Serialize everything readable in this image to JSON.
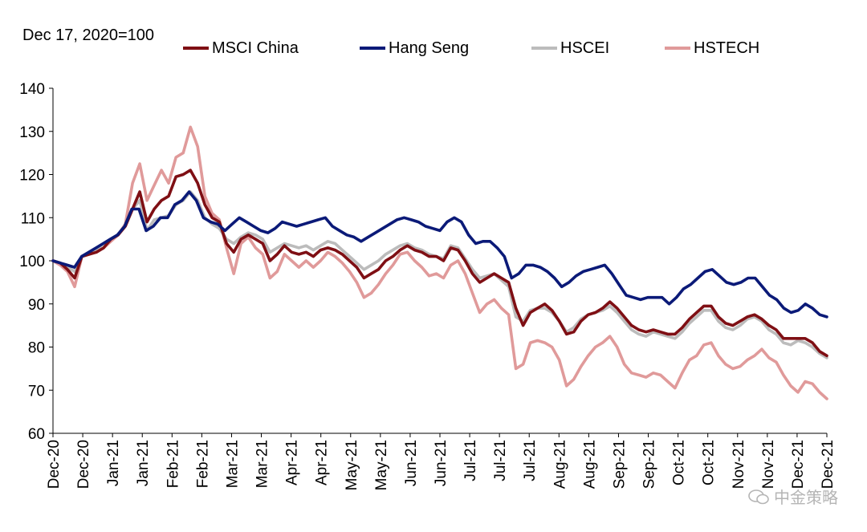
{
  "chart_data": {
    "type": "line",
    "title": "",
    "unit_note": "Dec 17, 2020=100",
    "xlabel": "",
    "ylabel": "",
    "ylim": [
      60,
      140
    ],
    "yticks": [
      60,
      70,
      80,
      90,
      100,
      110,
      120,
      130,
      140
    ],
    "xtick_labels": [
      "Dec-20",
      "Dec-20",
      "Jan-21",
      "Jan-21",
      "Feb-21",
      "Feb-21",
      "Mar-21",
      "Mar-21",
      "Apr-21",
      "Apr-21",
      "May-21",
      "May-21",
      "Jun-21",
      "Jun-21",
      "Jul-21",
      "Jul-21",
      "Jul-21",
      "Aug-21",
      "Aug-21",
      "Sep-21",
      "Sep-21",
      "Oct-21",
      "Oct-21",
      "Nov-21",
      "Nov-21",
      "Dec-21",
      "Dec-21"
    ],
    "grid": false,
    "legend_position": "top",
    "series": [
      {
        "name": "MSCI China",
        "color": "#7f0f14",
        "values": [
          100,
          99.5,
          98,
          96,
          101,
          101.5,
          102,
          103,
          105,
          106,
          108,
          112,
          116,
          109,
          112,
          114,
          115,
          119.5,
          120,
          121,
          118,
          113,
          110,
          109,
          104,
          102,
          105,
          106,
          105,
          104,
          100,
          101.5,
          103.5,
          102,
          101.5,
          102,
          101,
          102.5,
          103,
          102.5,
          101.5,
          100,
          98.5,
          96,
          97,
          98,
          100,
          101,
          102.5,
          103.5,
          102.5,
          102,
          101,
          101,
          100,
          103,
          102.5,
          100,
          97,
          95,
          96,
          97,
          96,
          95,
          89,
          85,
          88,
          89,
          90,
          88.5,
          86,
          83,
          83.5,
          86,
          87.5,
          88,
          89,
          90.5,
          89,
          87,
          85,
          84,
          83.5,
          84,
          83.5,
          83,
          83,
          84.5,
          86.5,
          88,
          89.5,
          89.5,
          87,
          85.5,
          85,
          86,
          87,
          87.5,
          86.5,
          85,
          84,
          82,
          82,
          82,
          82,
          81,
          79,
          78
        ]
      },
      {
        "name": "Hang Seng",
        "color": "#0b1a78",
        "values": [
          100,
          99.5,
          99,
          98.5,
          101,
          102,
          103,
          104,
          105,
          106,
          108,
          112,
          112,
          107,
          108,
          110,
          110,
          113,
          114,
          116,
          114,
          110,
          109,
          108.5,
          107,
          108.5,
          110,
          109,
          108,
          107,
          106.5,
          107.5,
          109,
          108.5,
          108,
          108.5,
          109,
          109.5,
          110,
          108,
          107,
          106,
          105.5,
          104.5,
          105.5,
          106.5,
          107.5,
          108.5,
          109.5,
          110,
          109.5,
          109,
          108,
          107.5,
          107,
          109,
          110,
          109,
          106,
          104,
          104.5,
          104.5,
          103,
          101,
          96,
          97,
          99,
          99,
          98.5,
          97.5,
          96,
          94,
          95,
          96.5,
          97.5,
          98,
          98.5,
          99,
          97,
          94.5,
          92,
          91.5,
          91,
          91.5,
          91.5,
          91.5,
          90,
          91.5,
          93.5,
          94.5,
          96,
          97.5,
          98,
          96.5,
          95,
          94.5,
          95,
          96,
          96,
          94,
          92,
          91,
          89,
          88,
          88.5,
          90,
          89,
          87.5,
          87
        ]
      },
      {
        "name": "HSCEI",
        "color": "#bcbcbc",
        "values": [
          100,
          99.5,
          98.5,
          97.5,
          101,
          101.5,
          102.5,
          104,
          105,
          106,
          108,
          112,
          114,
          107,
          109.5,
          110,
          110.5,
          113,
          114,
          116,
          114,
          110,
          108.5,
          107.5,
          105,
          104,
          105.5,
          106.5,
          106,
          105,
          102,
          103,
          104,
          103.5,
          103,
          103.5,
          102.5,
          103.5,
          104.5,
          104,
          102.5,
          101,
          99.5,
          98,
          99,
          100,
          101.5,
          102.5,
          103.5,
          104,
          103,
          102.5,
          101.5,
          101,
          100.5,
          103.5,
          103,
          100.5,
          98,
          96,
          96.5,
          97,
          95.5,
          94,
          87,
          86,
          88.5,
          89,
          89,
          88,
          86,
          83.5,
          84.5,
          86.5,
          87.5,
          88,
          88.5,
          89.5,
          88,
          86,
          84,
          83,
          82.5,
          83.5,
          83,
          82.5,
          82,
          83.5,
          85.5,
          87,
          88.5,
          88.5,
          86,
          84.5,
          84,
          85,
          86.5,
          87,
          86,
          84,
          83,
          81,
          80.5,
          81.5,
          81,
          80,
          78.5,
          77.5
        ]
      },
      {
        "name": "HSTECH",
        "color": "#e09a9a",
        "values": [
          100,
          99,
          97.5,
          94,
          101,
          101.5,
          102,
          103,
          104.5,
          106,
          108.5,
          118,
          122.5,
          114,
          117.5,
          121,
          118,
          124,
          125,
          131,
          126.5,
          115,
          111,
          109.5,
          103,
          97,
          104,
          105.5,
          103,
          101.5,
          96,
          97.5,
          101.5,
          100,
          98.5,
          100,
          98.5,
          100,
          102,
          101,
          99.5,
          97.5,
          95,
          91.5,
          92.5,
          94.5,
          97,
          99,
          101.5,
          102,
          100,
          98.5,
          96.5,
          97,
          96,
          99,
          100,
          97,
          92.5,
          88,
          90,
          91,
          89,
          87.5,
          75,
          76,
          81,
          81.5,
          81,
          80,
          77,
          71,
          72.5,
          75.5,
          78,
          80,
          81,
          82.5,
          80,
          76,
          74,
          73.5,
          73,
          74,
          73.5,
          72,
          70.5,
          74,
          77,
          78,
          80.5,
          81,
          78,
          76,
          75,
          75.5,
          77,
          78,
          79.5,
          77.5,
          76.5,
          73.5,
          71,
          69.5,
          72,
          71.5,
          69.5,
          68
        ]
      }
    ]
  },
  "legend": {
    "items": [
      {
        "label": "MSCI China",
        "color": "#7f0f14"
      },
      {
        "label": "Hang Seng",
        "color": "#0b1a78"
      },
      {
        "label": "HSCEI",
        "color": "#bcbcbc"
      },
      {
        "label": "HSTECH",
        "color": "#e09a9a"
      }
    ]
  },
  "watermark": {
    "text": "中金策略"
  }
}
